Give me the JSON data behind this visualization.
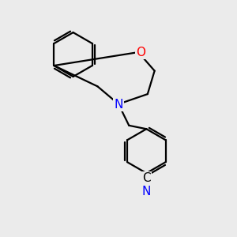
{
  "background_color": "#ebebeb",
  "bond_color": "#000000",
  "bond_width": 1.6,
  "atom_colors": {
    "O": "#ff0000",
    "N": "#0000ff",
    "C": "#000000"
  },
  "font_size": 10,
  "label_fontsize": 11
}
